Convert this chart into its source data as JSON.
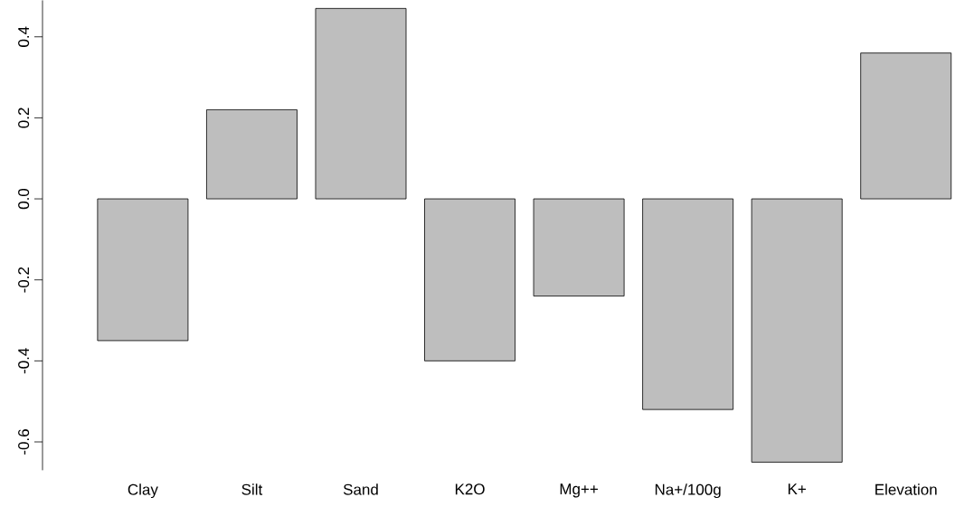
{
  "chart_data": {
    "type": "bar",
    "categories": [
      "Clay",
      "Silt",
      "Sand",
      "K2O",
      "Mg++",
      "Na+/100g",
      "K+",
      "Elevation"
    ],
    "values": [
      -0.35,
      0.22,
      0.47,
      -0.4,
      -0.24,
      -0.52,
      -0.65,
      0.36
    ],
    "color": "#bebebe",
    "ylim": [
      -0.67,
      0.49
    ],
    "yticks": [
      {
        "value": -0.6,
        "label": "-0.6"
      },
      {
        "value": -0.4,
        "label": "-0.4"
      },
      {
        "value": -0.2,
        "label": "-0.2"
      },
      {
        "value": 0,
        "label": "0.0"
      },
      {
        "value": 0.2,
        "label": "0.2"
      },
      {
        "value": 0.4,
        "label": "0.4"
      }
    ]
  }
}
